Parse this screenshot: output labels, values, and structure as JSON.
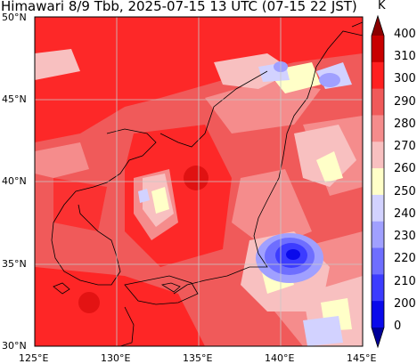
{
  "title": "Himawari 8/9 Tbb, 2025-07-15 13 UTC (07-15 22 JST)",
  "map": {
    "lat_labels": [
      "50°N",
      "45°N",
      "40°N",
      "35°N",
      "30°N"
    ],
    "lon_labels": [
      "125°E",
      "130°E",
      "135°E",
      "140°E",
      "145°E"
    ],
    "lat_range": [
      30,
      50
    ],
    "lon_range": [
      125,
      145
    ],
    "gridlines": true,
    "coastlines": true
  },
  "colorbar": {
    "unit": "K",
    "tick_labels": [
      "400",
      "310",
      "300",
      "290",
      "280",
      "270",
      "260",
      "250",
      "240",
      "230",
      "220",
      "210",
      "200",
      "0"
    ],
    "levels": [
      {
        "range": "310-400",
        "color": "#8a0000"
      },
      {
        "range": "300-310",
        "color": "#c80000"
      },
      {
        "range": "290-300",
        "color": "#ff2020"
      },
      {
        "range": "280-290",
        "color": "#f05a5a"
      },
      {
        "range": "270-280",
        "color": "#f58c8c"
      },
      {
        "range": "260-270",
        "color": "#f8c0c0"
      },
      {
        "range": "250-260",
        "color": "#ffffc8"
      },
      {
        "range": "240-250",
        "color": "#d2d2ff"
      },
      {
        "range": "230-240",
        "color": "#a0a0ff"
      },
      {
        "range": "220-230",
        "color": "#6e6eff"
      },
      {
        "range": "210-220",
        "color": "#3c3cff"
      },
      {
        "range": "200-210",
        "color": "#0a0aeb"
      },
      {
        "range": "0-200",
        "color": "#00009a"
      }
    ],
    "extend": "both"
  }
}
